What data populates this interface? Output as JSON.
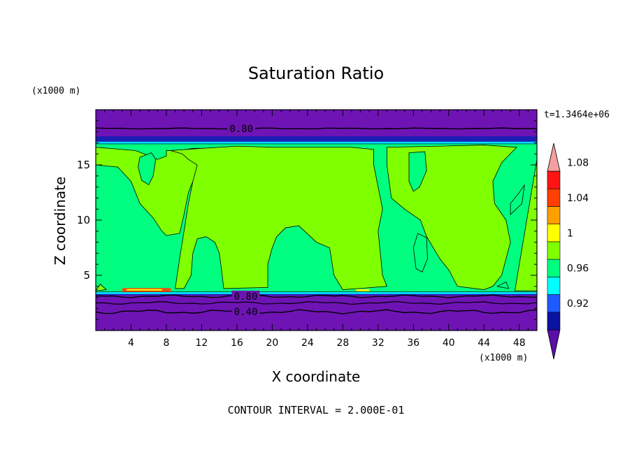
{
  "chart_data": {
    "type": "heatmap",
    "title": "Saturation Ratio",
    "xlabel": "X coordinate",
    "ylabel": "Z coordinate",
    "x_units": "(x1000 m)",
    "y_units": "(x1000 m)",
    "time_label": "t=1.3464e+06",
    "footer": "CONTOUR INTERVAL = 2.000E-01",
    "xlim": [
      0,
      50
    ],
    "ylim": [
      0,
      20
    ],
    "x_ticks": [
      4,
      8,
      12,
      16,
      20,
      24,
      28,
      32,
      36,
      40,
      44,
      48
    ],
    "y_ticks": [
      5,
      10,
      15
    ],
    "contour_labels": [
      {
        "text": "0.80",
        "x": 16.5,
        "y": 18.3
      },
      {
        "text": "0.80",
        "x": 17.0,
        "y": 3.1
      },
      {
        "text": "0.40",
        "x": 17.0,
        "y": 1.7
      }
    ],
    "colorbar": {
      "levels": [
        0.92,
        0.96,
        1,
        1.04,
        1.08
      ],
      "colors": [
        "#5a0fa8",
        "#0a14a0",
        "#1e5aff",
        "#00ffff",
        "#00ff80",
        "#80ff00",
        "#ffff00",
        "#ffa000",
        "#ff4000",
        "#ff1414",
        "#f4a0a0"
      ]
    },
    "colors": {
      "low": "#6e14b4",
      "band": "#00e0ff",
      "moist": "#00ff80",
      "near_saturation": "#80ff00",
      "supersat": "#ff4000"
    }
  }
}
